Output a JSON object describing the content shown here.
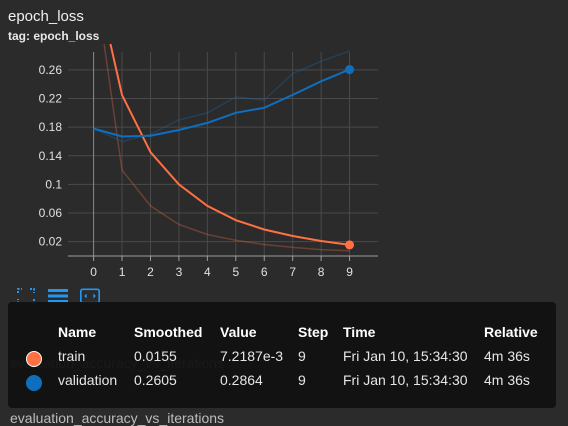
{
  "header": {
    "title": "epoch_loss",
    "tag": "tag: epoch_loss"
  },
  "background_rows": [
    "evaluation_accuracy_vs_iterations",
    "evaluation_accuracy_vs_iterations"
  ],
  "toolbar": {
    "icons": [
      "fit-domain-icon",
      "toggle-log-icon",
      "expand-icon"
    ]
  },
  "colors": {
    "train": "#ff7043",
    "validation": "#0f6fbf",
    "grid": "#4a4a4a",
    "axis": "#9e9e9e"
  },
  "tooltip": {
    "headers": [
      "Name",
      "Smoothed",
      "Value",
      "Step",
      "Time",
      "Relative"
    ],
    "rows": [
      {
        "name": "train",
        "smoothed": "0.0155",
        "value": "7.2187e-3",
        "step": "9",
        "time": "Fri Jan 10, 15:34:30",
        "relative": "4m 36s"
      },
      {
        "name": "validation",
        "smoothed": "0.2605",
        "value": "0.2864",
        "step": "9",
        "time": "Fri Jan 10, 15:34:30",
        "relative": "4m 36s"
      }
    ]
  },
  "chart_data": {
    "type": "line",
    "x": [
      0,
      1,
      2,
      3,
      4,
      5,
      6,
      7,
      8,
      9
    ],
    "xticks": [
      "0",
      "1",
      "2",
      "3",
      "4",
      "5",
      "6",
      "7",
      "8",
      "9"
    ],
    "yticks": [
      "0.02",
      "0.06",
      "0.1",
      "0.14",
      "0.18",
      "0.22",
      "0.26"
    ],
    "ytick_values": [
      0.02,
      0.06,
      0.1,
      0.14,
      0.18,
      0.22,
      0.26
    ],
    "xlim": [
      -0.9,
      10.0
    ],
    "ylim": [
      0.0,
      0.285
    ],
    "grid": true,
    "series": [
      {
        "name": "train",
        "color": "#ff7043",
        "smoothed": [
          0.4,
          0.225,
          0.145,
          0.1,
          0.07,
          0.05,
          0.037,
          0.028,
          0.021,
          0.0155
        ],
        "raw": [
          0.4,
          0.12,
          0.07,
          0.044,
          0.03,
          0.022,
          0.016,
          0.012,
          0.009,
          0.0072
        ]
      },
      {
        "name": "validation",
        "color": "#0f6fbf",
        "smoothed": [
          0.178,
          0.167,
          0.168,
          0.176,
          0.186,
          0.2,
          0.207,
          0.225,
          0.244,
          0.2605
        ],
        "raw": [
          0.178,
          0.16,
          0.17,
          0.19,
          0.2,
          0.222,
          0.218,
          0.255,
          0.272,
          0.2864
        ]
      }
    ]
  }
}
